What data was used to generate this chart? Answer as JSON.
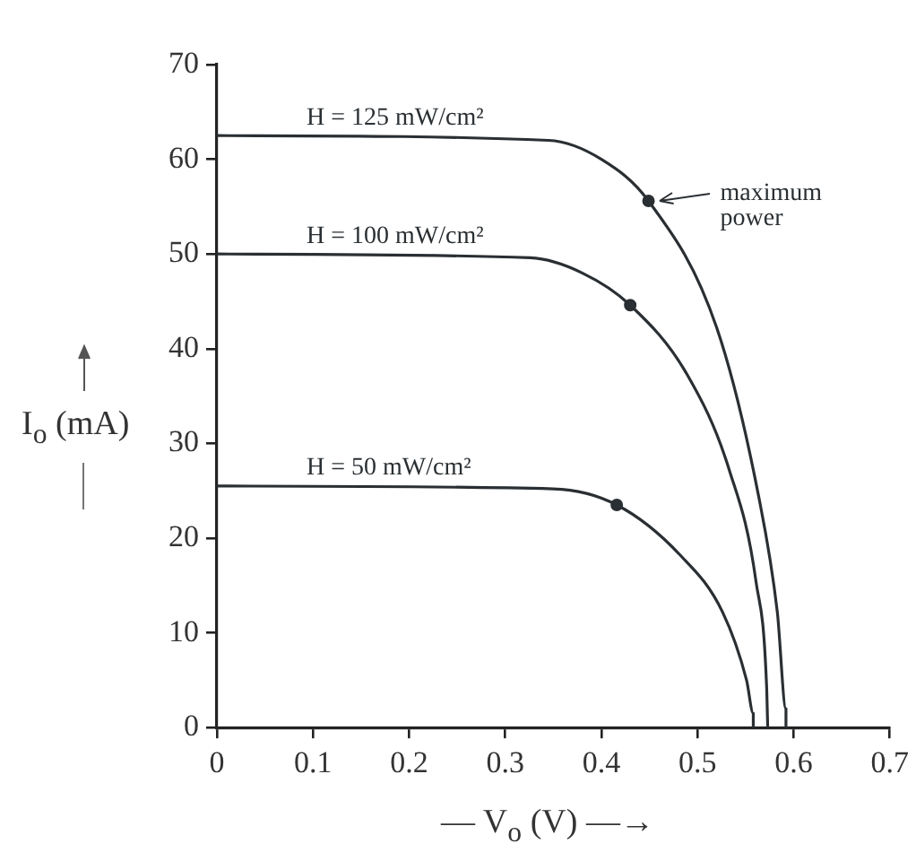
{
  "chart_data": {
    "type": "line",
    "xlabel": "— V$_{o}$ (V) —→",
    "ylabel": "I$_{o}$ (mA)",
    "xlim": [
      0,
      0.7
    ],
    "xticks": [
      0,
      0.1,
      0.2,
      0.3,
      0.4,
      0.5,
      0.6,
      0.7
    ],
    "ylim": [
      0,
      70
    ],
    "yticks": [
      0,
      10,
      20,
      30,
      40,
      50,
      60,
      70
    ],
    "grid": false,
    "legend": false,
    "marker": "none",
    "line_style": "solid",
    "series": [
      {
        "color": "#2a2f33",
        "x": [
          0,
          0.345,
          0.4,
          0.449,
          0.52,
          0.564,
          0.583,
          0.592,
          0.592
        ],
        "values": [
          62.5,
          62,
          60,
          55.6,
          42.2,
          24.2,
          12.2,
          2,
          0
        ]
      },
      {
        "color": "#2a2f33",
        "x": [
          0,
          0.326,
          0.38,
          0.43,
          0.489,
          0.533,
          0.561,
          0.572,
          0.573
        ],
        "values": [
          50,
          49.6,
          48,
          44.6,
          37.3,
          27.2,
          15.3,
          4,
          0
        ]
      },
      {
        "color": "#2a2f33",
        "x": [
          0,
          0.35,
          0.416,
          0.482,
          0.526,
          0.551,
          0.558,
          0.558
        ],
        "values": [
          25.5,
          25.2,
          23.5,
          18.2,
          12.2,
          5,
          1.5,
          0
        ]
      },
      {
        "type": "scatter",
        "marker": "circle",
        "color": "#2a2f33",
        "x": [
          0.449,
          0.43,
          0.416
        ],
        "values": [
          55.6,
          44.6,
          23.5
        ]
      }
    ],
    "annotations": [
      "H = 125 mW/cm²",
      "H = 100 mW/cm²",
      "H = 50 mW/cm²",
      {
        "text": "maximum\npower",
        "x": 0.449,
        "y": 55.6
      }
    ]
  }
}
